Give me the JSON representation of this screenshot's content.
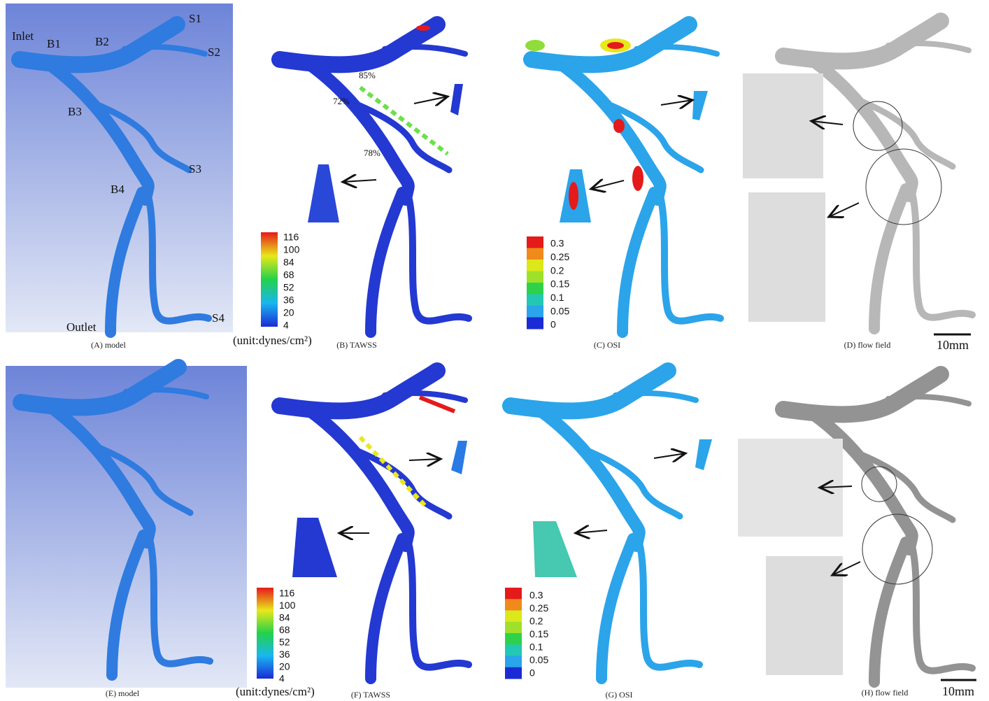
{
  "top": {
    "model": {
      "caption": "(A) model",
      "labels": {
        "inlet": "Inlet",
        "b1": "B1",
        "b2": "B2",
        "s1": "S1",
        "s2": "S2",
        "b3": "B3",
        "s3": "S3",
        "b4": "B4",
        "outlet": "Outlet",
        "s4": "S4"
      }
    },
    "tawss": {
      "caption": "(B) TAWSS",
      "unit": "(unit:dynes/cm²)",
      "stenosis": [
        "85%",
        "72%",
        "78%"
      ],
      "colorbar": [
        116,
        100,
        84,
        68,
        52,
        36,
        20,
        4
      ]
    },
    "osi": {
      "caption": "(C) OSI",
      "colorbar": [
        0.3,
        0.25,
        0.2,
        0.15,
        0.1,
        0.05,
        0
      ]
    },
    "flow": {
      "caption": "(D) flow field",
      "scale": "10mm"
    }
  },
  "bottom": {
    "model": {
      "caption": "(E) model"
    },
    "tawss": {
      "caption": "(F) TAWSS",
      "unit": "(unit:dynes/cm²)",
      "colorbar": [
        116,
        100,
        84,
        68,
        52,
        36,
        20,
        4
      ]
    },
    "osi": {
      "caption": "(G) OSI",
      "colorbar": [
        0.3,
        0.25,
        0.2,
        0.15,
        0.1,
        0.05,
        0
      ]
    },
    "flow": {
      "caption": "(H) flow field",
      "scale": "10mm"
    }
  }
}
